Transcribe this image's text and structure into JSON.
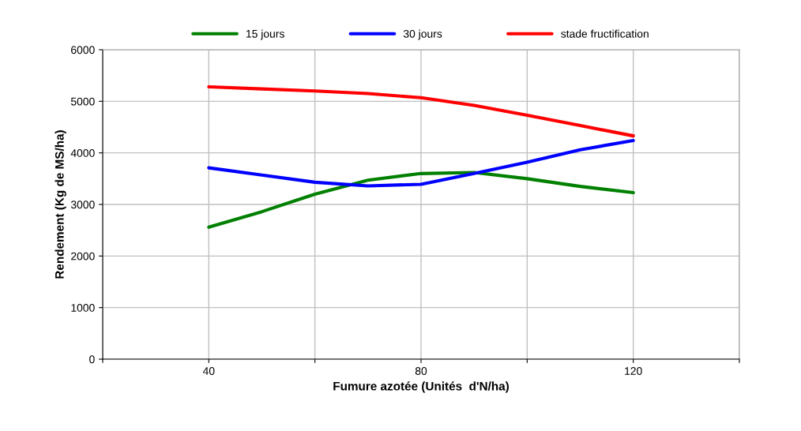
{
  "chart_data": {
    "type": "line",
    "xlabel": "Fumure azotée (Unités  d'N/ha)",
    "ylabel": "Rendement (Kg de MS/ha)",
    "x": [
      40,
      50,
      60,
      70,
      80,
      90,
      100,
      110,
      120
    ],
    "xlim": [
      20,
      140
    ],
    "xticks": [
      {
        "value": 20,
        "label": null
      },
      40,
      {
        "value": 60,
        "label": null
      },
      80,
      {
        "value": 100,
        "label": null
      },
      120,
      {
        "value": 140,
        "label": null
      }
    ],
    "ylim": [
      0,
      6000
    ],
    "yticks": [
      0,
      1000,
      2000,
      3000,
      4000,
      5000,
      6000
    ],
    "grid": true,
    "legend": "top",
    "marker": "none",
    "line_style": "solid",
    "series": [
      {
        "name": "15 jours",
        "color": "#008000",
        "values": [
          2560,
          2860,
          3200,
          3470,
          3600,
          3620,
          3500,
          3350,
          3230
        ]
      },
      {
        "name": "30 jours",
        "color": "#0000ff",
        "values": [
          3710,
          3570,
          3430,
          3360,
          3390,
          3600,
          3820,
          4060,
          4240
        ]
      },
      {
        "name": "stade fructification",
        "color": "#ff0000",
        "values": [
          5280,
          5240,
          5200,
          5150,
          5070,
          4920,
          4730,
          4530,
          4330
        ]
      }
    ]
  }
}
